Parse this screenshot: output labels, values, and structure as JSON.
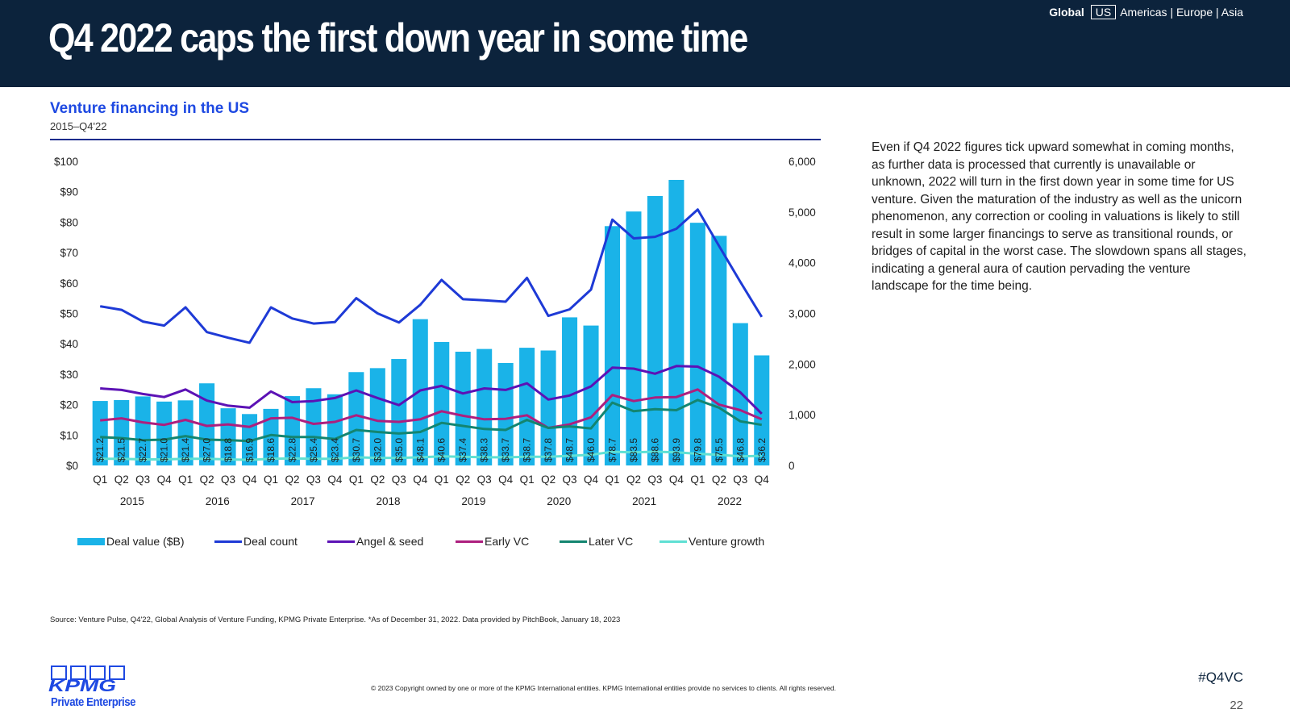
{
  "header": {
    "headline": "Q4 2022 caps the first down year in some time",
    "regions": {
      "global": "Global",
      "us": "US",
      "others": "Americas | Europe | Asia"
    }
  },
  "chart_heading": {
    "title": "Venture financing in the US",
    "subtitle": "2015–Q4'22"
  },
  "commentary": "Even if Q4 2022 figures tick upward somewhat in coming months, as further data is processed that currently is unavailable or unknown, 2022 will turn in the first down year in some time for US venture. Given the maturation of the industry as well as the unicorn phenomenon, any correction or cooling in valuations is likely to still result in some larger financings to serve as transitional rounds, or bridges of capital in the worst case. The slowdown spans all stages, indicating a general aura of caution pervading the venture landscape for the time being.",
  "source": "Source: Venture Pulse, Q4'22, Global Analysis of Venture Funding, KPMG Private Enterprise. *As of December 31, 2022. Data provided by PitchBook, January 18, 2023",
  "copyright": "© 2023 Copyright owned by one or more of the KPMG International entities. KPMG International entities provide no services to clients. All rights reserved.",
  "footer": {
    "hashtag": "#Q4VC",
    "page": "22",
    "logo": "KPMG",
    "logo_sub": "Private Enterprise"
  },
  "chart_data": {
    "type": "bar",
    "categories": [
      "Q1",
      "Q2",
      "Q3",
      "Q4",
      "Q1",
      "Q2",
      "Q3",
      "Q4",
      "Q1",
      "Q2",
      "Q3",
      "Q4",
      "Q1",
      "Q2",
      "Q3",
      "Q4",
      "Q1",
      "Q2",
      "Q3",
      "Q4",
      "Q1",
      "Q2",
      "Q3",
      "Q4",
      "Q1",
      "Q2",
      "Q3",
      "Q4",
      "Q1",
      "Q2",
      "Q3",
      "Q4"
    ],
    "years": [
      "2015",
      "2016",
      "2017",
      "2018",
      "2019",
      "2020",
      "2021",
      "2022"
    ],
    "left_axis": {
      "min": 0,
      "max": 100,
      "step": 10,
      "prefix": "$"
    },
    "right_axis": {
      "min": 0,
      "max": 6000,
      "step": 1000
    },
    "series": [
      {
        "name": "Deal value ($B)",
        "kind": "bar",
        "axis": "left",
        "color": "#1ab3e8",
        "values": [
          21.2,
          21.5,
          22.7,
          21.0,
          21.4,
          27.0,
          18.8,
          16.9,
          18.6,
          22.8,
          25.4,
          23.4,
          30.7,
          32.0,
          35.0,
          48.1,
          40.6,
          37.4,
          38.3,
          33.7,
          38.7,
          37.8,
          48.7,
          46.0,
          78.7,
          83.5,
          88.6,
          93.9,
          79.8,
          75.5,
          46.8,
          36.2
        ],
        "labels": [
          "$21.2",
          "$21.5",
          "$22.7",
          "$21.0",
          "$21.4",
          "$27.0",
          "$18.8",
          "$16.9",
          "$18.6",
          "$22.8",
          "$25.4",
          "$23.4",
          "$30.7",
          "$32.0",
          "$35.0",
          "$48.1",
          "$40.6",
          "$37.4",
          "$38.3",
          "$33.7",
          "$38.7",
          "$37.8",
          "$48.7",
          "$46.0",
          "$78.7",
          "$83.5",
          "$88.6",
          "$93.9",
          "$79.8",
          "$75.5",
          "$46.8",
          "$36.2"
        ]
      },
      {
        "name": "Deal count",
        "kind": "line",
        "axis": "right",
        "color": "#1e3ad6",
        "values": [
          3140,
          3070,
          2840,
          2760,
          3120,
          2630,
          2520,
          2420,
          3120,
          2900,
          2800,
          2830,
          3300,
          3000,
          2820,
          3170,
          3660,
          3280,
          3260,
          3230,
          3700,
          2950,
          3080,
          3470,
          4850,
          4480,
          4510,
          4670,
          5050,
          4330,
          3620,
          2930
        ]
      },
      {
        "name": "Angel & seed",
        "kind": "line",
        "axis": "right",
        "color": "#5c12b5",
        "values": [
          1520,
          1490,
          1410,
          1350,
          1500,
          1280,
          1180,
          1140,
          1460,
          1250,
          1270,
          1330,
          1480,
          1330,
          1190,
          1480,
          1570,
          1420,
          1520,
          1490,
          1620,
          1300,
          1380,
          1560,
          1930,
          1910,
          1810,
          1960,
          1950,
          1750,
          1440,
          1020
        ]
      },
      {
        "name": "Early VC",
        "kind": "line",
        "axis": "right",
        "color": "#ad1f7e",
        "values": [
          890,
          930,
          850,
          800,
          900,
          780,
          810,
          760,
          930,
          940,
          820,
          860,
          990,
          880,
          860,
          910,
          1070,
          980,
          910,
          920,
          990,
          740,
          810,
          950,
          1390,
          1270,
          1340,
          1350,
          1500,
          1200,
          1090,
          910
        ]
      },
      {
        "name": "Later VC",
        "kind": "line",
        "axis": "right",
        "color": "#138570",
        "values": [
          560,
          540,
          500,
          510,
          580,
          510,
          500,
          480,
          600,
          560,
          560,
          520,
          700,
          660,
          630,
          660,
          840,
          780,
          720,
          700,
          900,
          740,
          770,
          730,
          1240,
          1070,
          1110,
          1090,
          1290,
          1140,
          870,
          800
        ]
      },
      {
        "name": "Venture growth",
        "kind": "line",
        "axis": "right",
        "color": "#5fe0d4",
        "values": [
          130,
          130,
          120,
          120,
          130,
          130,
          120,
          110,
          130,
          140,
          130,
          130,
          160,
          150,
          150,
          160,
          180,
          170,
          160,
          160,
          170,
          170,
          190,
          210,
          270,
          260,
          270,
          260,
          230,
          210,
          180,
          190
        ]
      }
    ]
  }
}
